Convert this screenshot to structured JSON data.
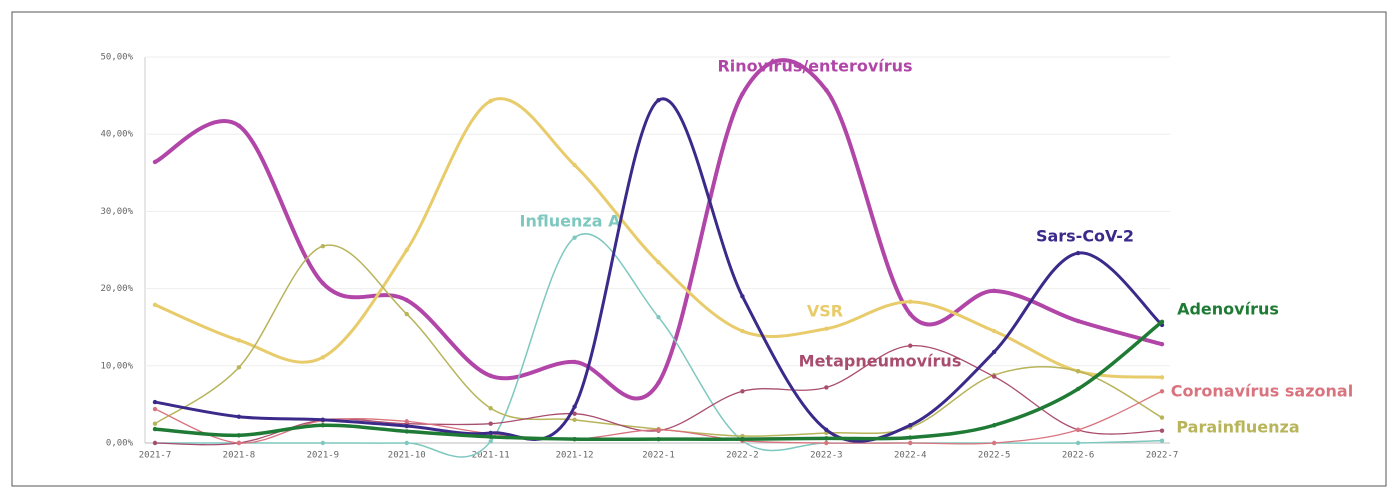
{
  "chart_data": {
    "type": "line",
    "categories": [
      "2021-7",
      "2021-8",
      "2021-9",
      "2021-10",
      "2021-11",
      "2021-12",
      "2022-1",
      "2022-2",
      "2022-3",
      "2022-4",
      "2022-5",
      "2022-6",
      "2022-7"
    ],
    "ylim": [
      0,
      50
    ],
    "yticks": [
      {
        "value": 0,
        "label": "0,00%"
      },
      {
        "value": 10,
        "label": "10,00%"
      },
      {
        "value": 20,
        "label": "20,00%"
      },
      {
        "value": 30,
        "label": "30,00%"
      },
      {
        "value": 40,
        "label": "40,00%"
      },
      {
        "value": 50,
        "label": "50,00%"
      }
    ],
    "grid": true,
    "series": [
      {
        "name": "Rinovírus/enterovírus",
        "color": "#b146a8",
        "values": [
          36.4,
          41.1,
          20.7,
          18.5,
          8.7,
          10.5,
          7.8,
          45.2,
          45.7,
          16.7,
          19.7,
          15.8,
          12.8
        ]
      },
      {
        "name": "VSR",
        "color": "#e8cb6a",
        "values": [
          17.9,
          13.3,
          11.1,
          25,
          44.3,
          36,
          23.4,
          14.5,
          14.8,
          18.3,
          14.5,
          9.3,
          8.5
        ]
      },
      {
        "name": "Influenza A",
        "color": "#7ec8bf",
        "values": [
          0,
          0,
          0,
          0,
          0.2,
          26.6,
          16.3,
          0.3,
          0,
          0,
          0,
          0,
          0.3
        ]
      },
      {
        "name": "Parainfluenza",
        "color": "#b7b45a",
        "values": [
          2.5,
          9.8,
          25.5,
          16.7,
          4.5,
          3,
          1.8,
          0.9,
          1.3,
          2,
          8.8,
          9.3,
          3.3
        ]
      },
      {
        "name": "Metapneumovírus",
        "color": "#a94d6e",
        "values": [
          0,
          0,
          3,
          2.5,
          2.5,
          3.8,
          1.6,
          6.7,
          7.2,
          12.6,
          8.6,
          1.7,
          1.6
        ]
      },
      {
        "name": "Coronavírus sazonal",
        "color": "#d9737e",
        "values": [
          4.4,
          0,
          2.9,
          2.8,
          1.2,
          0.5,
          1.7,
          0.3,
          0,
          0,
          0,
          1.7,
          6.7
        ]
      },
      {
        "name": "Sars-CoV-2",
        "color": "#3b2a8a",
        "values": [
          5.3,
          3.4,
          3,
          2.2,
          1.3,
          4.7,
          44.4,
          19,
          1.7,
          2.3,
          11.8,
          24.6,
          15.3
        ]
      },
      {
        "name": "Adenovírus",
        "color": "#1e7a34",
        "values": [
          1.8,
          1,
          2.3,
          1.5,
          0.8,
          0.5,
          0.5,
          0.5,
          0.6,
          0.7,
          2.3,
          7,
          15.7
        ]
      }
    ]
  }
}
